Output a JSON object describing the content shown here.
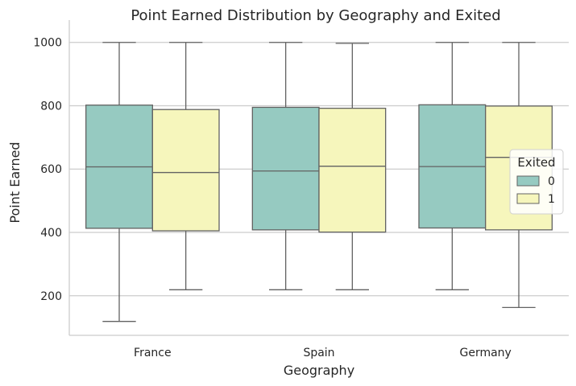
{
  "chart_data": {
    "type": "box",
    "title": "Point Earned Distribution by Geography and Exited",
    "xlabel": "Geography",
    "ylabel": "Point Earned",
    "categories": [
      "France",
      "Spain",
      "Germany"
    ],
    "ylim": [
      75,
      1045
    ],
    "yticks": [
      200,
      400,
      600,
      800,
      1000
    ],
    "grid": "y",
    "legend": {
      "title": "Exited",
      "placement": "center-right"
    },
    "series": [
      {
        "name": "0",
        "color": "#96cac1",
        "boxes": [
          {
            "category": "France",
            "whisker_low": 119,
            "q1": 413,
            "median": 607,
            "q3": 802,
            "whisker_high": 1000
          },
          {
            "category": "Spain",
            "whisker_low": 219,
            "q1": 408,
            "median": 594,
            "q3": 795,
            "whisker_high": 1000
          },
          {
            "category": "Germany",
            "whisker_low": 219,
            "q1": 414,
            "median": 608,
            "q3": 803,
            "whisker_high": 1000
          }
        ]
      },
      {
        "name": "1",
        "color": "#f6f6bc",
        "boxes": [
          {
            "category": "France",
            "whisker_low": 219,
            "q1": 405,
            "median": 589,
            "q3": 788,
            "whisker_high": 1000
          },
          {
            "category": "Spain",
            "whisker_low": 219,
            "q1": 401,
            "median": 609,
            "q3": 792,
            "whisker_high": 997
          },
          {
            "category": "Germany",
            "whisker_low": 163,
            "q1": 408,
            "median": 637,
            "q3": 799,
            "whisker_high": 1000
          }
        ]
      }
    ]
  }
}
